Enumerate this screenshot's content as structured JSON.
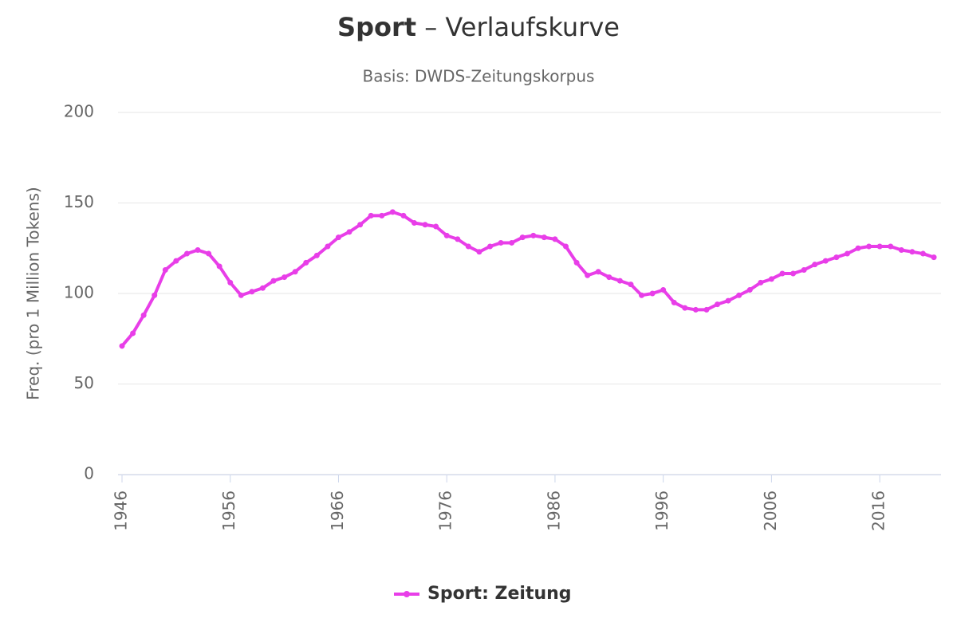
{
  "chart_data": {
    "type": "line",
    "title": [
      "Sport",
      " – Verlaufskurve"
    ],
    "subtitle": "Basis: DWDS-Zeitungskorpus",
    "y_label": "Freq. (pro 1 Million Tokens)",
    "x": [
      1946,
      1947,
      1948,
      1949,
      1950,
      1951,
      1952,
      1953,
      1954,
      1955,
      1956,
      1957,
      1958,
      1959,
      1960,
      1961,
      1962,
      1963,
      1964,
      1965,
      1966,
      1967,
      1968,
      1969,
      1970,
      1971,
      1972,
      1973,
      1974,
      1975,
      1976,
      1977,
      1978,
      1979,
      1980,
      1981,
      1982,
      1983,
      1984,
      1985,
      1986,
      1987,
      1988,
      1989,
      1990,
      1991,
      1992,
      1993,
      1994,
      1995,
      1996,
      1997,
      1998,
      1999,
      2000,
      2001,
      2002,
      2003,
      2004,
      2005,
      2006,
      2007,
      2008,
      2009,
      2010,
      2011,
      2012,
      2013,
      2014,
      2015,
      2016,
      2017,
      2018,
      2019,
      2020,
      2021
    ],
    "series": [
      {
        "name": "Sport: Zeitung",
        "color": "#e83ee8",
        "values": [
          71,
          78,
          88,
          99,
          113,
          118,
          122,
          124,
          122,
          115,
          106,
          99,
          101,
          103,
          107,
          109,
          112,
          117,
          121,
          126,
          131,
          134,
          138,
          143,
          143,
          145,
          143,
          139,
          138,
          137,
          132,
          130,
          126,
          123,
          126,
          128,
          128,
          131,
          132,
          131,
          130,
          126,
          117,
          110,
          112,
          109,
          107,
          105,
          99,
          100,
          102,
          95,
          92,
          91,
          91,
          94,
          96,
          99,
          102,
          106,
          108,
          111,
          111,
          113,
          116,
          118,
          120,
          122,
          125,
          126,
          126,
          126,
          124,
          123,
          122,
          120
        ]
      }
    ],
    "xlim": [
      1946,
      2021
    ],
    "xticks": [
      1946,
      1956,
      1966,
      1976,
      1986,
      1996,
      2006,
      2016
    ],
    "ylim": [
      0,
      200
    ],
    "yticks": [
      0,
      50,
      100,
      150,
      200
    ],
    "grid": true,
    "legend": "bottom"
  }
}
